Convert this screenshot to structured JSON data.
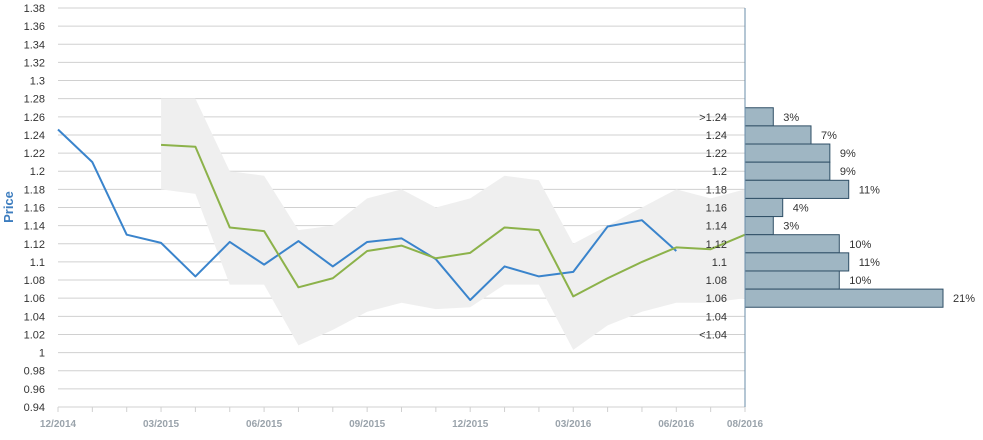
{
  "chart_data": {
    "type": "line",
    "ylabel": "Price",
    "ylim": [
      0.94,
      1.38
    ],
    "y_ticks": [
      "0.94",
      "0.96",
      "0.98",
      "1",
      "1.02",
      "1.04",
      "1.06",
      "1.08",
      "1.1",
      "1.12",
      "1.14",
      "1.16",
      "1.18",
      "1.2",
      "1.22",
      "1.24",
      "1.26",
      "1.28",
      "1.3",
      "1.32",
      "1.34",
      "1.36",
      "1.38"
    ],
    "x_start": "2014-12",
    "x_end": "2016-08",
    "x_ticks": [
      {
        "date": "2014-12",
        "label": "12/2014"
      },
      {
        "date": "2015-03",
        "label": "03/2015"
      },
      {
        "date": "2015-06",
        "label": "06/2015"
      },
      {
        "date": "2015-09",
        "label": "09/2015"
      },
      {
        "date": "2015-12",
        "label": "12/2015"
      },
      {
        "date": "2016-03",
        "label": "03/2016"
      },
      {
        "date": "2016-06",
        "label": "06/2016"
      },
      {
        "date": "2016-08",
        "label": "08/2016"
      }
    ],
    "grid": true,
    "colors": {
      "blue_line": "#3a84cc",
      "green_line": "#8cb24a",
      "band": "#efefef",
      "histogram_bar": "#9fb6c3",
      "histogram_border": "#2f4f66",
      "grid": "#d0d0d0",
      "divider": "#6a8ca8"
    },
    "series": [
      {
        "key": "blue",
        "points": [
          [
            "2014-12",
            1.246
          ],
          [
            "2015-01",
            1.21
          ],
          [
            "2015-02",
            1.13
          ],
          [
            "2015-03",
            1.121
          ],
          [
            "2015-04",
            1.084
          ],
          [
            "2015-05",
            1.122
          ],
          [
            "2015-06",
            1.097
          ],
          [
            "2015-07",
            1.123
          ],
          [
            "2015-08",
            1.095
          ],
          [
            "2015-09",
            1.122
          ],
          [
            "2015-10",
            1.126
          ],
          [
            "2015-11",
            1.103
          ],
          [
            "2015-12",
            1.058
          ],
          [
            "2016-01",
            1.095
          ],
          [
            "2016-02",
            1.084
          ],
          [
            "2016-03",
            1.089
          ],
          [
            "2016-04",
            1.139
          ],
          [
            "2016-05",
            1.146
          ],
          [
            "2016-06",
            1.112
          ]
        ]
      },
      {
        "key": "green",
        "points": [
          [
            "2015-03",
            1.229
          ],
          [
            "2015-04",
            1.227
          ],
          [
            "2015-05",
            1.138
          ],
          [
            "2015-06",
            1.134
          ],
          [
            "2015-07",
            1.072
          ],
          [
            "2015-08",
            1.082
          ],
          [
            "2015-09",
            1.112
          ],
          [
            "2015-10",
            1.118
          ],
          [
            "2015-11",
            1.104
          ],
          [
            "2015-12",
            1.11
          ],
          [
            "2016-01",
            1.138
          ],
          [
            "2016-02",
            1.135
          ],
          [
            "2016-03",
            1.062
          ],
          [
            "2016-04",
            1.082
          ],
          [
            "2016-05",
            1.1
          ],
          [
            "2016-06",
            1.116
          ],
          [
            "2016-07",
            1.114
          ],
          [
            "2016-08",
            1.13
          ]
        ]
      }
    ],
    "band": {
      "upper": [
        [
          "2015-03",
          1.28
        ],
        [
          "2015-04",
          1.28
        ],
        [
          "2015-05",
          1.2
        ],
        [
          "2015-06",
          1.195
        ],
        [
          "2015-07",
          1.135
        ],
        [
          "2015-08",
          1.14
        ],
        [
          "2015-09",
          1.17
        ],
        [
          "2015-10",
          1.18
        ],
        [
          "2015-11",
          1.16
        ],
        [
          "2015-12",
          1.17
        ],
        [
          "2016-01",
          1.195
        ],
        [
          "2016-02",
          1.19
        ],
        [
          "2016-03",
          1.12
        ],
        [
          "2016-04",
          1.14
        ],
        [
          "2016-05",
          1.16
        ],
        [
          "2016-06",
          1.18
        ],
        [
          "2016-07",
          1.17
        ],
        [
          "2016-08",
          1.18
        ]
      ],
      "lower": [
        [
          "2015-03",
          1.18
        ],
        [
          "2015-04",
          1.175
        ],
        [
          "2015-05",
          1.075
        ],
        [
          "2015-06",
          1.075
        ],
        [
          "2015-07",
          1.008
        ],
        [
          "2015-08",
          1.025
        ],
        [
          "2015-09",
          1.045
        ],
        [
          "2015-10",
          1.055
        ],
        [
          "2015-11",
          1.048
        ],
        [
          "2015-12",
          1.05
        ],
        [
          "2016-01",
          1.075
        ],
        [
          "2016-02",
          1.075
        ],
        [
          "2016-03",
          1.003
        ],
        [
          "2016-04",
          1.03
        ],
        [
          "2016-05",
          1.045
        ],
        [
          "2016-06",
          1.055
        ],
        [
          "2016-07",
          1.055
        ],
        [
          "2016-08",
          1.06
        ]
      ]
    },
    "histogram": [
      {
        "label": ">1.24",
        "value": 3,
        "pct": "3%"
      },
      {
        "label": "1.24",
        "value": 7,
        "pct": "7%"
      },
      {
        "label": "1.22",
        "value": 9,
        "pct": "9%"
      },
      {
        "label": "1.2",
        "value": 9,
        "pct": "9%"
      },
      {
        "label": "1.18",
        "value": 11,
        "pct": "11%"
      },
      {
        "label": "1.16",
        "value": 4,
        "pct": "4%"
      },
      {
        "label": "1.14",
        "value": 3,
        "pct": "3%"
      },
      {
        "label": "1.12",
        "value": 10,
        "pct": "10%"
      },
      {
        "label": "1.1",
        "value": 11,
        "pct": "11%"
      },
      {
        "label": "1.08",
        "value": 10,
        "pct": "10%"
      },
      {
        "label": "1.06",
        "value": 21,
        "pct": "21%"
      },
      {
        "label": "1.04",
        "value": null,
        "pct": ""
      },
      {
        "label": "<1.04",
        "value": null,
        "pct": ""
      }
    ]
  }
}
